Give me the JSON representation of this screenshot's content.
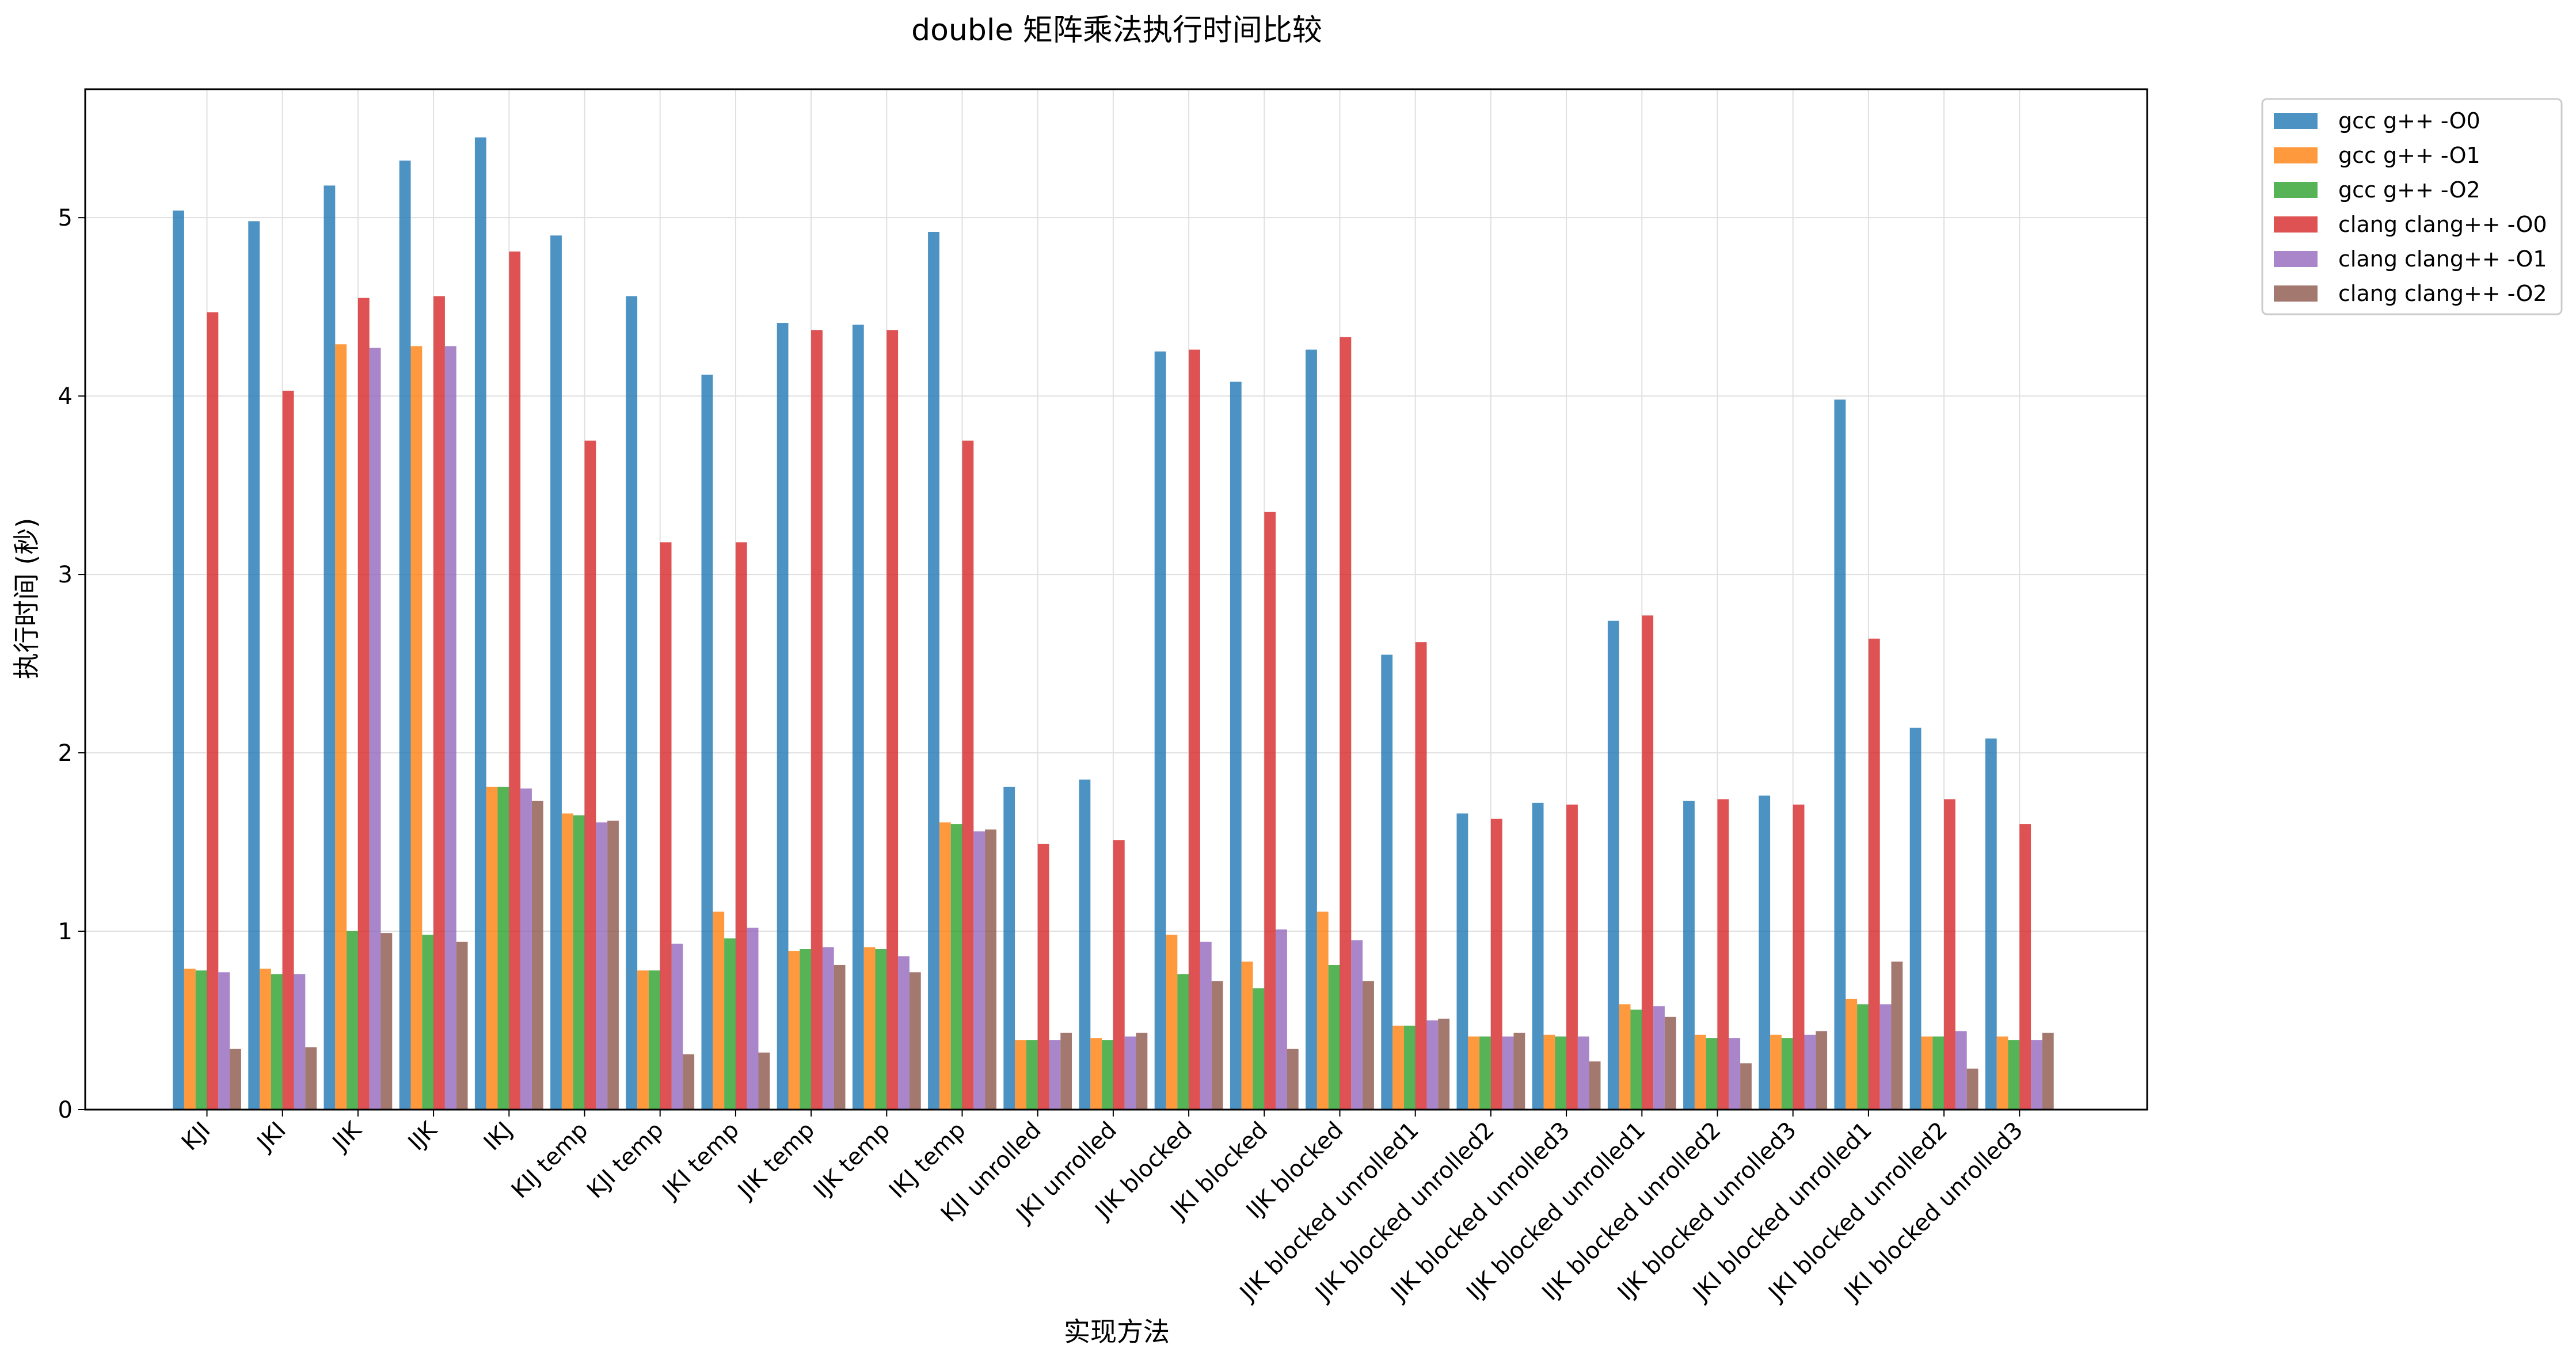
{
  "chart_data": {
    "type": "bar",
    "title": "double 矩阵乘法执行时间比较",
    "xlabel": "实现方法",
    "ylabel": "执行时间 (秒)",
    "ylim": [
      0,
      5.72
    ],
    "yticks": [
      0,
      1,
      2,
      3,
      4,
      5
    ],
    "grid": true,
    "legend_position": "outside-top-right",
    "categories": [
      "KJI",
      "JKI",
      "JIK",
      "IJK",
      "IKJ",
      "KIJ temp",
      "KJI temp",
      "JKI temp",
      "JIK temp",
      "IJK temp",
      "IKJ temp",
      "KJI unrolled",
      "JKI unrolled",
      "JIK blocked",
      "JKI blocked",
      "IJK blocked",
      "JIK blocked unrolled1",
      "JIK blocked unrolled2",
      "JIK blocked unrolled3",
      "IJK blocked unrolled1",
      "IJK blocked unrolled2",
      "IJK blocked unrolled3",
      "JKI blocked unrolled1",
      "JKI blocked unrolled2",
      "JKI blocked unrolled3"
    ],
    "series": [
      {
        "name": "gcc g++ -O0",
        "color": "#1f77b4",
        "values": [
          5.04,
          4.98,
          5.18,
          5.32,
          5.45,
          4.9,
          4.56,
          4.12,
          4.41,
          4.4,
          4.92,
          1.81,
          1.85,
          4.25,
          4.08,
          4.26,
          2.55,
          1.66,
          1.72,
          2.74,
          1.73,
          1.76,
          3.98,
          2.14,
          2.08
        ]
      },
      {
        "name": "gcc g++ -O1",
        "color": "#ff7f0e",
        "values": [
          0.79,
          0.79,
          4.29,
          4.28,
          1.81,
          1.66,
          0.78,
          1.11,
          0.89,
          0.91,
          1.61,
          0.39,
          0.4,
          0.98,
          0.83,
          1.11,
          0.47,
          0.41,
          0.42,
          0.59,
          0.42,
          0.42,
          0.62,
          0.41,
          0.41
        ]
      },
      {
        "name": "gcc g++ -O2",
        "color": "#2ca02c",
        "values": [
          0.78,
          0.76,
          1.0,
          0.98,
          1.81,
          1.65,
          0.78,
          0.96,
          0.9,
          0.9,
          1.6,
          0.39,
          0.39,
          0.76,
          0.68,
          0.81,
          0.47,
          0.41,
          0.41,
          0.56,
          0.4,
          0.4,
          0.59,
          0.41,
          0.39
        ]
      },
      {
        "name": "clang clang++ -O0",
        "color": "#d62728",
        "values": [
          4.47,
          4.03,
          4.55,
          4.56,
          4.81,
          3.75,
          3.18,
          3.18,
          4.37,
          4.37,
          3.75,
          1.49,
          1.51,
          4.26,
          3.35,
          4.33,
          2.62,
          1.63,
          1.71,
          2.77,
          1.74,
          1.71,
          2.64,
          1.74,
          1.6
        ]
      },
      {
        "name": "clang clang++ -O1",
        "color": "#9467bd",
        "values": [
          0.77,
          0.76,
          4.27,
          4.28,
          1.8,
          1.61,
          0.93,
          1.02,
          0.91,
          0.86,
          1.56,
          0.39,
          0.41,
          0.94,
          1.01,
          0.95,
          0.5,
          0.41,
          0.41,
          0.58,
          0.4,
          0.42,
          0.59,
          0.44,
          0.39
        ]
      },
      {
        "name": "clang clang++ -O2",
        "color": "#8c564b",
        "values": [
          0.34,
          0.35,
          0.99,
          0.94,
          1.73,
          1.62,
          0.31,
          0.32,
          0.81,
          0.77,
          1.57,
          0.43,
          0.43,
          0.72,
          0.34,
          0.72,
          0.51,
          0.43,
          0.27,
          0.52,
          0.26,
          0.44,
          0.83,
          0.23,
          0.43
        ]
      }
    ]
  }
}
